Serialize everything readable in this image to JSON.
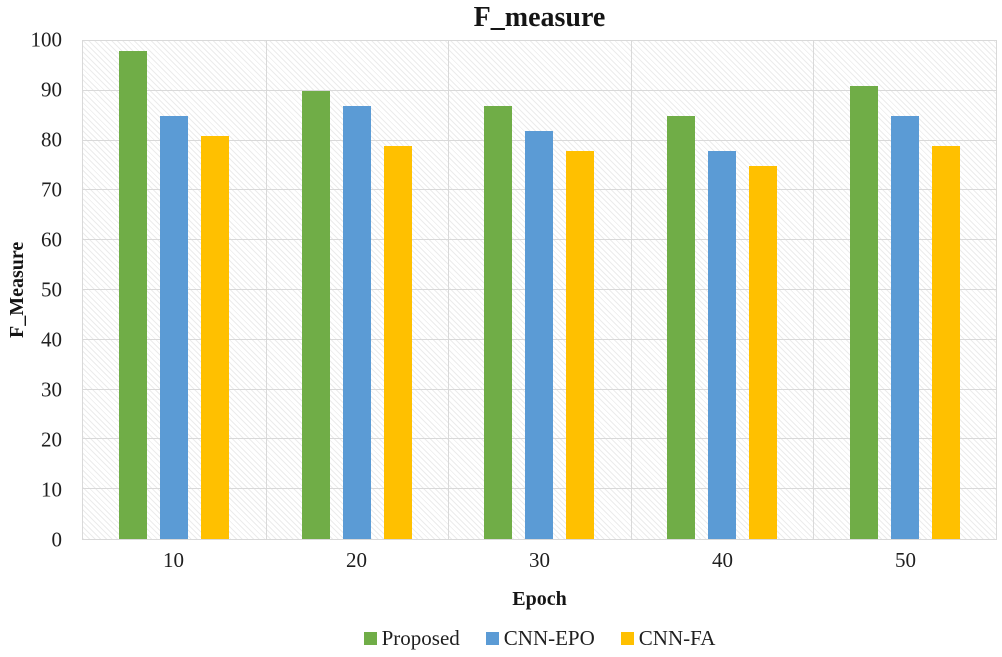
{
  "chart_data": {
    "type": "bar",
    "title": "F_measure",
    "xlabel": "Epoch",
    "ylabel": "F_Measure",
    "categories": [
      "10",
      "20",
      "30",
      "40",
      "50"
    ],
    "series": [
      {
        "name": "Proposed",
        "color": "#70AD47",
        "values": [
          98,
          90,
          87,
          85,
          91
        ]
      },
      {
        "name": "CNN-EPO",
        "color": "#5B9BD5",
        "values": [
          85,
          87,
          82,
          78,
          85
        ]
      },
      {
        "name": "CNN-FA",
        "color": "#FFC000",
        "values": [
          81,
          79,
          78,
          75,
          79
        ]
      }
    ],
    "ylim": [
      0,
      100
    ],
    "ytick_step": 10,
    "grid": true,
    "legend_position": "bottom",
    "colors": {
      "gridline": "#D9D9D9",
      "plot_border": "#D9D9D9",
      "text": "#1F1F1F"
    }
  }
}
